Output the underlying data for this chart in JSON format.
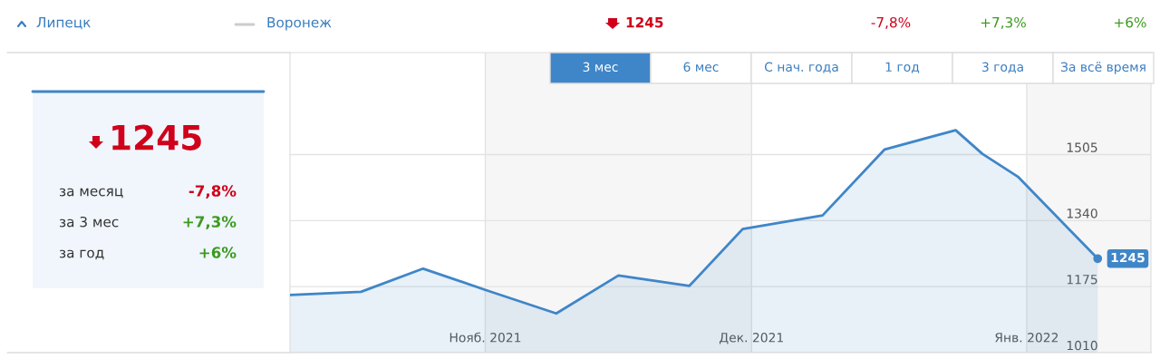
{
  "chart_data": {
    "type": "area",
    "x": [
      "2021-10-10",
      "2021-10-18",
      "2021-10-25",
      "2021-11-01",
      "2021-11-09",
      "2021-11-16",
      "2021-11-24",
      "2021-11-30",
      "2021-12-09",
      "2021-12-16",
      "2021-12-24",
      "2021-12-27",
      "2021-12-31",
      "2022-01-09"
    ],
    "series": [
      {
        "color": "#3f86c8",
        "values": [
          1154,
          1162,
          1220,
          1167,
          1108,
          1203,
          1177,
          1319,
          1353,
          1518,
          1566,
          1507,
          1450,
          1245
        ]
      }
    ],
    "xlim": [
      "2021-10-10",
      "2022-01-15"
    ],
    "xticks": [
      {
        "value": "2021-11-01",
        "label": "Нояб. 2021"
      },
      {
        "value": "2021-12-01",
        "label": "Дек. 2021"
      },
      {
        "value": "2022-01-01",
        "label": "Янв. 2022"
      }
    ],
    "ylim": [
      1010,
      1760
    ],
    "yticks": [
      1010,
      1175,
      1340,
      1505
    ],
    "grid": true,
    "bands": [
      {
        "axis": "x",
        "from": "2021-11-01",
        "to": "2021-12-01",
        "color": "#f6f6f6"
      },
      {
        "axis": "x",
        "from": "2022-01-01",
        "to": "2022-01-15",
        "color": "#f6f6f6"
      }
    ],
    "annotations": [
      "Липецк",
      "Воронеж",
      "1245",
      "-7,8%",
      "+7,3%",
      "+6%",
      "1245",
      "за месяц",
      "-7,8%",
      "за 3 мес",
      "+7,3%",
      "за год",
      "+6%",
      "3 мес",
      "6 мес",
      "С нач. года",
      "1 год",
      "3 года",
      "За всё время",
      {
        "text": "1245",
        "x": "2022-01-09",
        "y": 1245
      }
    ]
  }
}
